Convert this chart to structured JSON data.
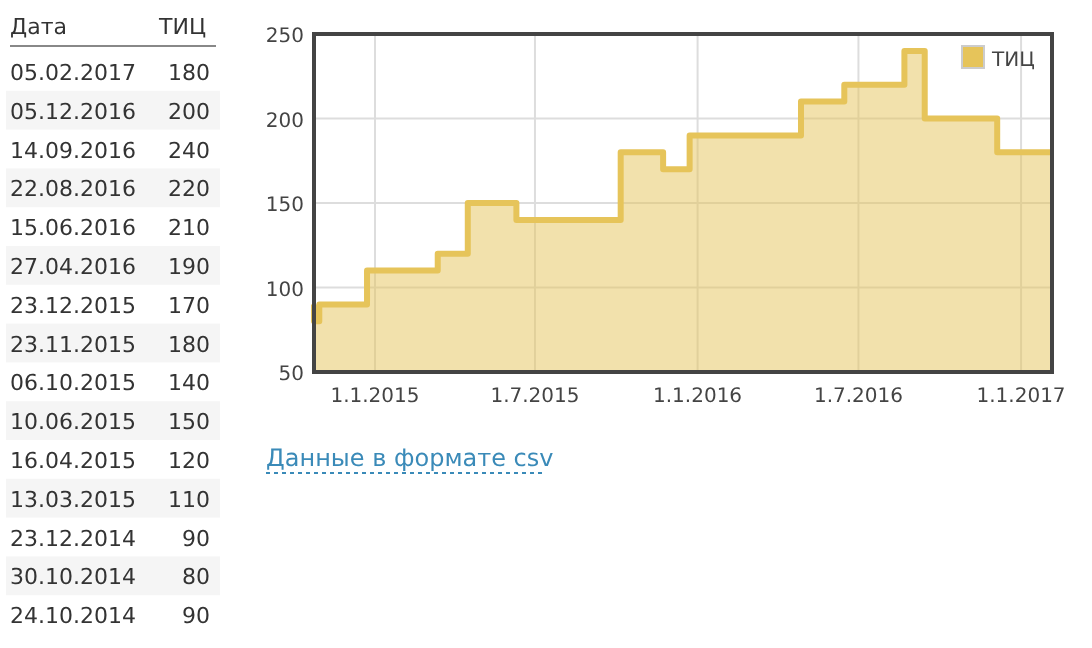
{
  "chart_data": [
    {
      "type": "other",
      "annotations": [
        "Дата",
        "ТИЦ"
      ],
      "categories": [
        "05.02.2017",
        "05.12.2016",
        "14.09.2016",
        "22.08.2016",
        "15.06.2016",
        "27.04.2016",
        "23.12.2015",
        "23.11.2015",
        "06.10.2015",
        "10.06.2015",
        "16.04.2015",
        "13.03.2015",
        "23.12.2014",
        "30.10.2014",
        "24.10.2014"
      ],
      "values": [
        180,
        200,
        240,
        220,
        210,
        190,
        170,
        180,
        140,
        150,
        120,
        110,
        90,
        80,
        90
      ],
      "data_labels": true
    },
    {
      "type": "area",
      "x": [
        "2014-10-24",
        "2014-10-24",
        "2014-10-30",
        "2014-10-30",
        "2014-12-23",
        "2014-12-23",
        "2015-03-13",
        "2015-03-13",
        "2015-04-16",
        "2015-04-16",
        "2015-06-10",
        "2015-06-10",
        "2015-10-06",
        "2015-10-06",
        "2015-11-23",
        "2015-11-23",
        "2015-12-23",
        "2015-12-23",
        "2016-04-27",
        "2016-04-27",
        "2016-06-15",
        "2016-06-15",
        "2016-08-22",
        "2016-08-22",
        "2016-09-14",
        "2016-09-14",
        "2016-12-05",
        "2016-12-05",
        "2017-02-05"
      ],
      "series": [
        {
          "name": "ТИЦ",
          "color": "#e6c45a",
          "values": [
            90,
            80,
            80,
            90,
            90,
            110,
            110,
            120,
            120,
            150,
            150,
            140,
            140,
            180,
            180,
            170,
            170,
            190,
            190,
            210,
            210,
            220,
            220,
            240,
            240,
            200,
            200,
            180,
            180
          ]
        }
      ],
      "xlim": [
        "2014-10-24",
        "2017-02-05"
      ],
      "xticks": [
        {
          "value": "2015-01-01",
          "label": "1.1.2015"
        },
        {
          "value": "2015-07-01",
          "label": "1.7.2015"
        },
        {
          "value": "2016-01-01",
          "label": "1.1.2016"
        },
        {
          "value": "2016-07-01",
          "label": "1.7.2016"
        },
        {
          "value": "2017-01-01",
          "label": "1.1.2017"
        }
      ],
      "ylim": [
        50,
        250
      ],
      "yticks": [
        50,
        100,
        150,
        200,
        250
      ],
      "grid": true,
      "legend": "top right",
      "annotations": [
        "Данные в формате csv"
      ]
    }
  ]
}
